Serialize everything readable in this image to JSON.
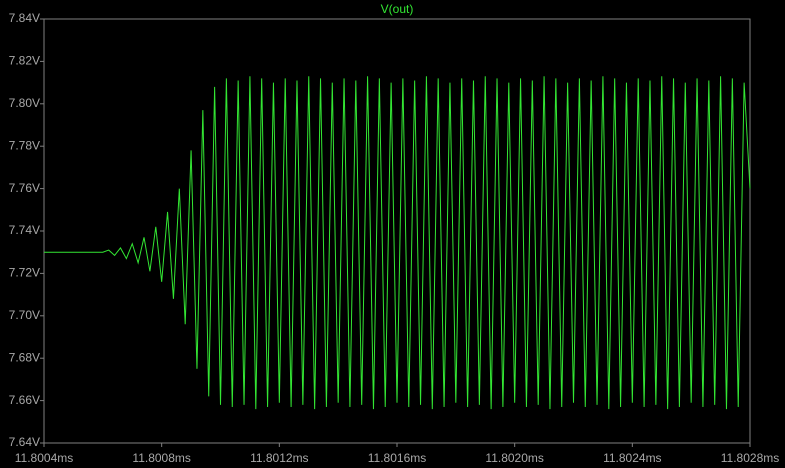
{
  "chart_data": {
    "type": "line",
    "title": "V(out)",
    "xlim": [
      11.8004,
      11.8028
    ],
    "xticks": [
      {
        "value": 11.8004,
        "label": "11.8004ms"
      },
      {
        "value": 11.8008,
        "label": "11.8008ms"
      },
      {
        "value": 11.8012,
        "label": "11.8012ms"
      },
      {
        "value": 11.8016,
        "label": "11.8016ms"
      },
      {
        "value": 11.802,
        "label": "11.8020ms"
      },
      {
        "value": 11.8024,
        "label": "11.8024ms"
      },
      {
        "value": 11.8028,
        "label": "11.8028ms"
      }
    ],
    "ylim": [
      7.64,
      7.84
    ],
    "yticks": [
      {
        "value": 7.64,
        "label": "7.64V"
      },
      {
        "value": 7.66,
        "label": "7.66V"
      },
      {
        "value": 7.68,
        "label": "7.68V"
      },
      {
        "value": 7.7,
        "label": "7.70V"
      },
      {
        "value": 7.72,
        "label": "7.72V"
      },
      {
        "value": 7.74,
        "label": "7.74V"
      },
      {
        "value": 7.76,
        "label": "7.76V"
      },
      {
        "value": 7.78,
        "label": "7.78V"
      },
      {
        "value": 7.8,
        "label": "7.80V"
      },
      {
        "value": 7.82,
        "label": "7.82V"
      },
      {
        "value": 7.84,
        "label": "7.84V"
      }
    ],
    "grid": false,
    "x": [
      11.8004,
      11.8006,
      11.80062,
      11.80064,
      11.80066,
      11.80068,
      11.8007,
      11.80072,
      11.80074,
      11.80076,
      11.80078,
      11.8008,
      11.80082,
      11.80084,
      11.80086,
      11.80088,
      11.8009,
      11.80092,
      11.80094,
      11.80096,
      11.80098,
      11.801,
      11.80102,
      11.80104,
      11.80106,
      11.80108,
      11.8011,
      11.80112,
      11.80114,
      11.80116,
      11.80118,
      11.8012,
      11.80122,
      11.80124,
      11.80126,
      11.80128,
      11.8013,
      11.80132,
      11.80134,
      11.80136,
      11.80138,
      11.8014,
      11.80142,
      11.80144,
      11.80146,
      11.80148,
      11.8015,
      11.80152,
      11.80154,
      11.80156,
      11.80158,
      11.8016,
      11.80162,
      11.80164,
      11.80166,
      11.80168,
      11.8017,
      11.80172,
      11.80174,
      11.80176,
      11.80178,
      11.8018,
      11.80182,
      11.80184,
      11.80186,
      11.80188,
      11.8019,
      11.80192,
      11.80194,
      11.80196,
      11.80198,
      11.802,
      11.80202,
      11.80204,
      11.80206,
      11.80208,
      11.8021,
      11.80212,
      11.80214,
      11.80216,
      11.80218,
      11.8022,
      11.80222,
      11.80224,
      11.80226,
      11.80228,
      11.8023,
      11.80232,
      11.80234,
      11.80236,
      11.80238,
      11.8024,
      11.80242,
      11.80244,
      11.80246,
      11.80248,
      11.8025,
      11.80252,
      11.80254,
      11.80256,
      11.80258,
      11.8026,
      11.80262,
      11.80264,
      11.80266,
      11.80268,
      11.8027,
      11.80272,
      11.80274,
      11.80276,
      11.80278,
      11.8028
    ],
    "series": [
      {
        "name": "V(out)",
        "color": "#33e633",
        "values": [
          7.73,
          7.73,
          7.731,
          7.7285,
          7.732,
          7.727,
          7.734,
          7.725,
          7.737,
          7.721,
          7.742,
          7.716,
          7.749,
          7.708,
          7.76,
          7.696,
          7.778,
          7.675,
          7.797,
          7.662,
          7.808,
          7.658,
          7.812,
          7.657,
          7.811,
          7.658,
          7.813,
          7.656,
          7.812,
          7.657,
          7.81,
          7.659,
          7.812,
          7.657,
          7.811,
          7.658,
          7.813,
          7.656,
          7.812,
          7.657,
          7.81,
          7.659,
          7.812,
          7.657,
          7.811,
          7.658,
          7.813,
          7.656,
          7.812,
          7.657,
          7.81,
          7.659,
          7.812,
          7.657,
          7.811,
          7.658,
          7.813,
          7.656,
          7.812,
          7.657,
          7.81,
          7.659,
          7.812,
          7.657,
          7.811,
          7.658,
          7.813,
          7.656,
          7.812,
          7.657,
          7.81,
          7.659,
          7.812,
          7.657,
          7.811,
          7.658,
          7.813,
          7.656,
          7.812,
          7.657,
          7.81,
          7.659,
          7.812,
          7.657,
          7.811,
          7.658,
          7.813,
          7.656,
          7.812,
          7.657,
          7.81,
          7.659,
          7.812,
          7.657,
          7.811,
          7.658,
          7.813,
          7.656,
          7.812,
          7.657,
          7.81,
          7.659,
          7.812,
          7.657,
          7.811,
          7.658,
          7.813,
          7.656,
          7.812,
          7.657,
          7.81,
          7.76
        ]
      }
    ]
  }
}
